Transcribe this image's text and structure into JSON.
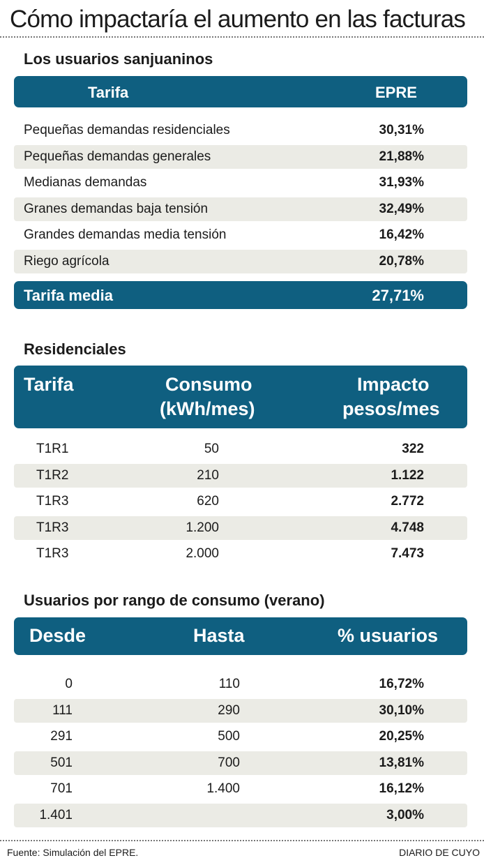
{
  "title": "Cómo impactaría el aumento en las facturas",
  "section1": {
    "heading": "Los usuarios sanjuaninos",
    "col_tarifa": "Tarifa",
    "col_epre": "EPRE",
    "rows": [
      {
        "label": "Pequeñas demandas residenciales",
        "value": "30,31%"
      },
      {
        "label": "Pequeñas demandas generales",
        "value": "21,88%"
      },
      {
        "label": "Medianas demandas",
        "value": "31,93%"
      },
      {
        "label": "Granes demandas baja tensión",
        "value": "32,49%"
      },
      {
        "label": "Grandes demandas media tensión",
        "value": "16,42%"
      },
      {
        "label": "Riego agrícola",
        "value": "20,78%"
      }
    ],
    "total_label": "Tarifa media",
    "total_value": "27,71%"
  },
  "section2": {
    "heading": "Residenciales",
    "col_tarifa": "Tarifa",
    "col_consumo_1": "Consumo",
    "col_consumo_2": "(kWh/mes)",
    "col_impacto_1": "Impacto",
    "col_impacto_2": "pesos/mes",
    "rows": [
      {
        "tarifa": "T1R1",
        "consumo": "50",
        "impacto": "322"
      },
      {
        "tarifa": "T1R2",
        "consumo": "210",
        "impacto": "1.122"
      },
      {
        "tarifa": "T1R3",
        "consumo": "620",
        "impacto": "2.772"
      },
      {
        "tarifa": "T1R3",
        "consumo": "1.200",
        "impacto": "4.748"
      },
      {
        "tarifa": "T1R3",
        "consumo": "2.000",
        "impacto": "7.473"
      }
    ]
  },
  "section3": {
    "heading": "Usuarios por rango de consumo (verano)",
    "col_desde": "Desde",
    "col_hasta": "Hasta",
    "col_usuarios": "% usuarios",
    "rows": [
      {
        "desde": "0",
        "hasta": "110",
        "usuarios": "16,72%"
      },
      {
        "desde": "111",
        "hasta": "290",
        "usuarios": "30,10%"
      },
      {
        "desde": "291",
        "hasta": "500",
        "usuarios": "20,25%"
      },
      {
        "desde": "501",
        "hasta": "700",
        "usuarios": "13,81%"
      },
      {
        "desde": "701",
        "hasta": "1.400",
        "usuarios": "16,12%"
      },
      {
        "desde": "1.401",
        "hasta": "",
        "usuarios": "3,00%"
      }
    ]
  },
  "footer": {
    "source": "Fuente: Simulación del EPRE.",
    "credit": "DIARIO DE CUYO"
  },
  "colors": {
    "header_band": "#0f5f80",
    "row_shade": "#ebebe5"
  }
}
